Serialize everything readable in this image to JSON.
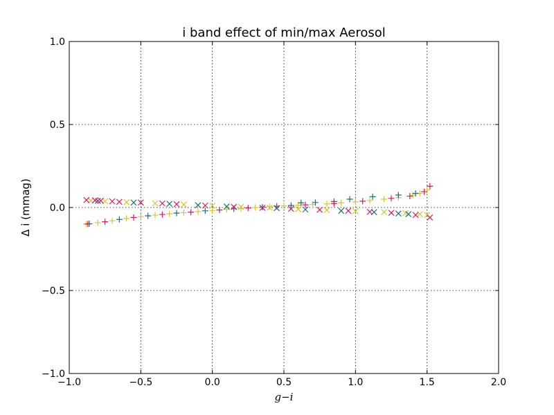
{
  "chart_data": {
    "type": "scatter",
    "title": "i band effect of min/max Aerosol",
    "xlabel": "g−i",
    "ylabel": "Δ i (mmag)",
    "xlim": [
      -1.0,
      2.0
    ],
    "ylim": [
      -1.0,
      1.0
    ],
    "x_ticks": [
      -1.0,
      -0.5,
      0.0,
      0.5,
      1.0,
      1.5,
      2.0
    ],
    "y_ticks": [
      -1.0,
      -0.5,
      0.0,
      0.5,
      1.0
    ],
    "x_tick_labels": [
      "−1.0",
      "−0.5",
      "0.0",
      "0.5",
      "1.0",
      "1.5",
      "2.0"
    ],
    "y_tick_labels": [
      "−1.0",
      "−0.5",
      "0.0",
      "0.5",
      "1.0"
    ],
    "grid": true,
    "legend": "none",
    "series": [
      {
        "marker": "plus",
        "color": "#d4c62a",
        "points": [
          [
            -0.88,
            -0.1
          ],
          [
            -0.8,
            -0.092
          ],
          [
            -0.7,
            -0.08
          ],
          [
            -0.6,
            -0.066
          ],
          [
            -0.5,
            -0.055
          ],
          [
            -0.4,
            -0.046
          ],
          [
            -0.3,
            -0.038
          ],
          [
            -0.2,
            -0.031
          ],
          [
            -0.1,
            -0.025
          ],
          [
            0.0,
            -0.018
          ],
          [
            0.1,
            -0.012
          ],
          [
            0.2,
            -0.006
          ],
          [
            0.3,
            0.0
          ],
          [
            0.4,
            0.005
          ],
          [
            0.5,
            0.01
          ],
          [
            0.6,
            0.014
          ],
          [
            0.7,
            0.018
          ],
          [
            0.8,
            0.022
          ],
          [
            0.9,
            0.028
          ],
          [
            1.0,
            0.034
          ],
          [
            1.1,
            0.042
          ],
          [
            1.2,
            0.05
          ],
          [
            1.3,
            0.06
          ],
          [
            1.4,
            0.074
          ],
          [
            1.45,
            0.085
          ],
          [
            1.5,
            0.105
          ]
        ]
      },
      {
        "marker": "plus",
        "color": "#1a6e7a",
        "points": [
          [
            -0.86,
            -0.098
          ],
          [
            -0.65,
            -0.072
          ],
          [
            -0.45,
            -0.05
          ],
          [
            -0.25,
            -0.034
          ],
          [
            -0.05,
            -0.02
          ],
          [
            0.15,
            -0.008
          ],
          [
            0.35,
            0.002
          ],
          [
            0.55,
            0.012
          ],
          [
            0.62,
            0.028
          ],
          [
            0.72,
            0.03
          ],
          [
            0.85,
            0.036
          ],
          [
            0.96,
            0.05
          ],
          [
            1.12,
            0.065
          ],
          [
            1.3,
            0.075
          ],
          [
            1.42,
            0.085
          ]
        ]
      },
      {
        "marker": "plus",
        "color": "#d81a5a",
        "points": [
          [
            -0.87,
            -0.099
          ],
          [
            -0.75,
            -0.086
          ],
          [
            -0.55,
            -0.06
          ],
          [
            -0.35,
            -0.042
          ],
          [
            -0.15,
            -0.028
          ],
          [
            0.05,
            -0.015
          ],
          [
            0.25,
            -0.003
          ],
          [
            0.45,
            0.008
          ],
          [
            0.65,
            0.016
          ],
          [
            0.85,
            0.024
          ],
          [
            1.05,
            0.038
          ],
          [
            1.25,
            0.055
          ],
          [
            1.38,
            0.068
          ],
          [
            1.48,
            0.095
          ],
          [
            1.52,
            0.128
          ]
        ]
      },
      {
        "marker": "x",
        "color": "#d4c62a",
        "points": [
          [
            -0.85,
            0.042
          ],
          [
            -0.75,
            0.038
          ],
          [
            -0.6,
            0.032
          ],
          [
            -0.4,
            0.025
          ],
          [
            -0.2,
            0.018
          ],
          [
            0.0,
            0.01
          ],
          [
            0.2,
            0.004
          ],
          [
            0.4,
            -0.002
          ],
          [
            0.6,
            -0.01
          ],
          [
            0.8,
            -0.016
          ],
          [
            1.0,
            -0.022
          ],
          [
            1.2,
            -0.028
          ],
          [
            1.35,
            -0.034
          ],
          [
            1.45,
            -0.04
          ],
          [
            1.5,
            -0.045
          ]
        ]
      },
      {
        "marker": "x",
        "color": "#1a6e7a",
        "points": [
          [
            -0.8,
            0.04
          ],
          [
            -0.55,
            0.03
          ],
          [
            -0.3,
            0.022
          ],
          [
            -0.1,
            0.014
          ],
          [
            0.1,
            0.006
          ],
          [
            0.45,
            -0.004
          ],
          [
            0.65,
            -0.012
          ],
          [
            0.9,
            -0.02
          ],
          [
            1.13,
            -0.028
          ],
          [
            1.3,
            -0.036
          ],
          [
            1.37,
            -0.04
          ]
        ]
      },
      {
        "marker": "x",
        "color": "#d81a5a",
        "points": [
          [
            -0.88,
            0.045
          ],
          [
            -0.82,
            0.043
          ],
          [
            -0.78,
            0.041
          ],
          [
            -0.7,
            0.037
          ],
          [
            -0.65,
            0.034
          ],
          [
            -0.5,
            0.03
          ],
          [
            -0.35,
            0.025
          ],
          [
            -0.25,
            0.02
          ],
          [
            -0.05,
            0.012
          ],
          [
            0.15,
            0.004
          ],
          [
            0.35,
            -0.002
          ],
          [
            0.55,
            -0.008
          ],
          [
            0.75,
            -0.014
          ],
          [
            0.95,
            -0.02
          ],
          [
            1.1,
            -0.026
          ],
          [
            1.25,
            -0.032
          ],
          [
            1.42,
            -0.045
          ],
          [
            1.52,
            -0.06
          ]
        ]
      }
    ]
  }
}
